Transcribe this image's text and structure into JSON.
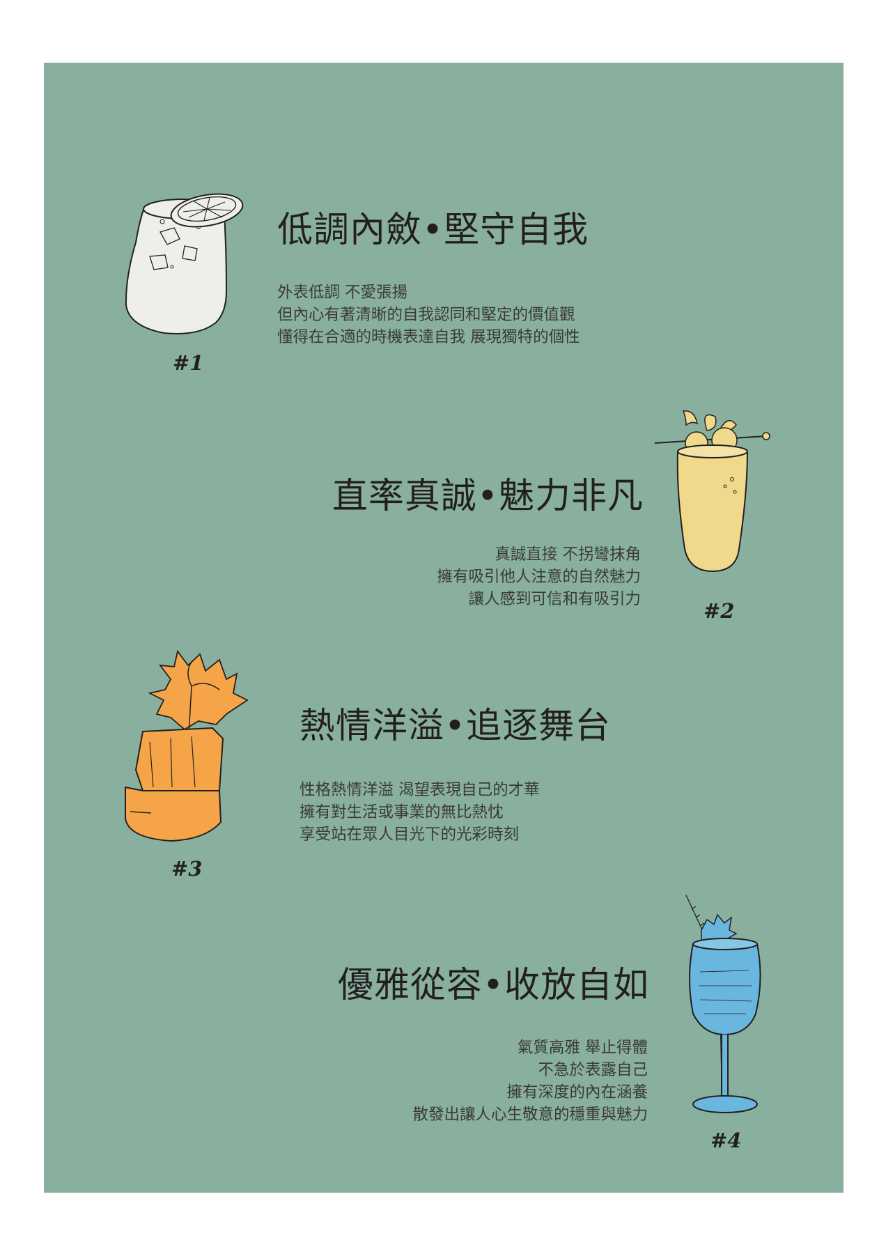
{
  "items": [
    {
      "title": "低調內斂•堅守自我",
      "lines": [
        "外表低調 不愛張揚",
        "但內心有著清晰的自我認同和堅定的價值觀",
        "懂得在合適的時機表達自我 展現獨特的個性"
      ],
      "number": "#1",
      "drink_icon": "whisky-glass-with-lemon-slice-icon",
      "color": "#eeeeea"
    },
    {
      "title": "直率真誠•魅力非凡",
      "lines": [
        "真誠直接 不拐彎抹角",
        "擁有吸引他人注意的自然魅力",
        "讓人感到可信和有吸引力"
      ],
      "number": "#2",
      "drink_icon": "tall-yellow-cocktail-icon",
      "color": "#f0d98a"
    },
    {
      "title": "熱情洋溢•追逐舞台",
      "lines": [
        "性格熱情洋溢 渴望表現自己的才華",
        "擁有對生活或事業的無比熱忱",
        "享受站在眾人目光下的光彩時刻"
      ],
      "number": "#3",
      "drink_icon": "orange-cocktail-with-flower-icon",
      "color": "#f5a548"
    },
    {
      "title": "優雅從容•收放自如",
      "lines": [
        "氣質高雅 舉止得體",
        "不急於表露自己",
        "擁有深度的內在涵養",
        "散發出讓人心生敬意的穩重與魅力"
      ],
      "number": "#4",
      "drink_icon": "blue-wine-glass-icon",
      "color": "#69b6de"
    }
  ],
  "colors": {
    "background": "#89b09e",
    "page": "#ffffff",
    "text": "#231f20"
  }
}
